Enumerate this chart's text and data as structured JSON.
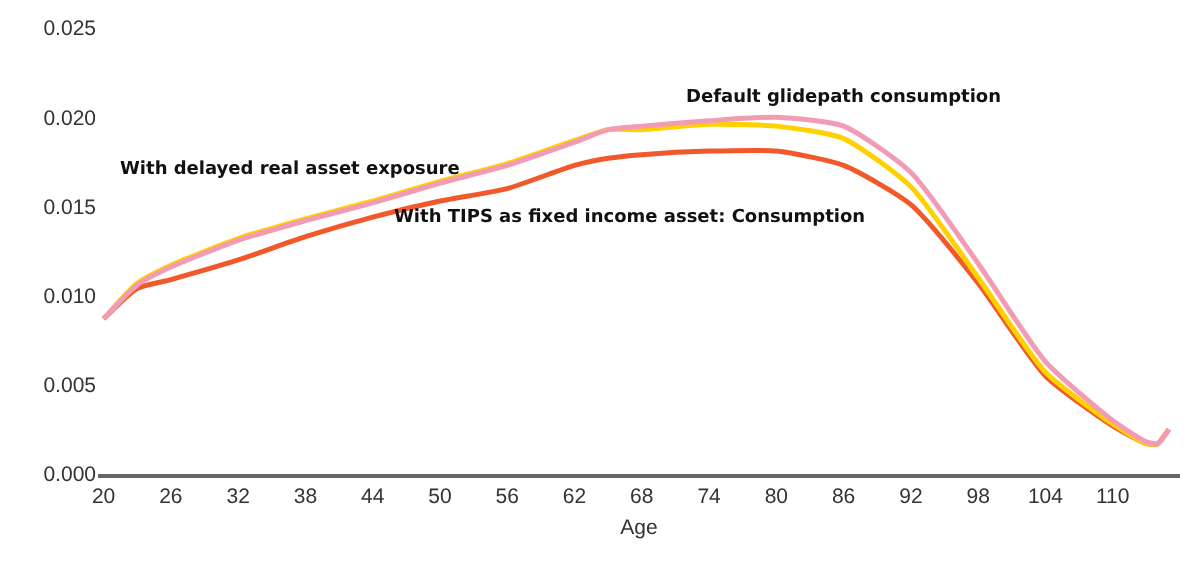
{
  "chart_data": {
    "type": "line",
    "xlabel": "Age",
    "x": [
      20,
      23,
      26,
      32,
      38,
      44,
      50,
      56,
      62,
      65,
      68,
      74,
      80,
      86,
      92,
      98,
      104,
      110,
      113,
      114,
      115
    ],
    "series": [
      {
        "name": "Default glidepath consumption",
        "color": "#f29bb5",
        "values": [
          0.0087,
          0.0106,
          0.0116,
          0.0131,
          0.0142,
          0.0152,
          0.0163,
          0.0173,
          0.0186,
          0.0193,
          0.0195,
          0.0198,
          0.02,
          0.0195,
          0.0169,
          0.0118,
          0.0063,
          0.003,
          0.0018,
          0.0017,
          0.0025
        ]
      },
      {
        "name": "With delayed real asset exposure",
        "color": "#ffd100",
        "values": [
          0.0087,
          0.0107,
          0.0117,
          0.0132,
          0.0143,
          0.0153,
          0.0164,
          0.0174,
          0.0187,
          0.0193,
          0.0193,
          0.0196,
          0.0195,
          0.0188,
          0.0161,
          0.011,
          0.0057,
          0.0028,
          0.0017,
          0.0017,
          0.0025
        ]
      },
      {
        "name": "With TIPS as fixed income asset: Consumption",
        "color": "#f2592a",
        "values": [
          0.0087,
          0.0104,
          0.0109,
          0.012,
          0.0133,
          0.0144,
          0.0153,
          0.016,
          0.0173,
          0.0177,
          0.0179,
          0.0181,
          0.0181,
          0.0173,
          0.0151,
          0.0107,
          0.0055,
          0.0027,
          0.0017,
          0.0017,
          0.0025
        ]
      }
    ],
    "xlim": [
      19.5,
      116
    ],
    "xticks": [
      20,
      26,
      32,
      38,
      44,
      50,
      56,
      62,
      68,
      74,
      80,
      86,
      92,
      98,
      104,
      110
    ],
    "ylim": [
      0,
      0.025
    ],
    "yticks": [
      {
        "value": 0,
        "label": "0.000"
      },
      {
        "value": 0.005,
        "label": "0.005"
      },
      {
        "value": 0.01,
        "label": "0.010"
      },
      {
        "value": 0.015,
        "label": "0.015"
      },
      {
        "value": 0.02,
        "label": "0.020"
      },
      {
        "value": 0.025,
        "label": "0.025"
      }
    ],
    "grid": false,
    "legend": false,
    "marker": "none",
    "line_style": "solid"
  }
}
